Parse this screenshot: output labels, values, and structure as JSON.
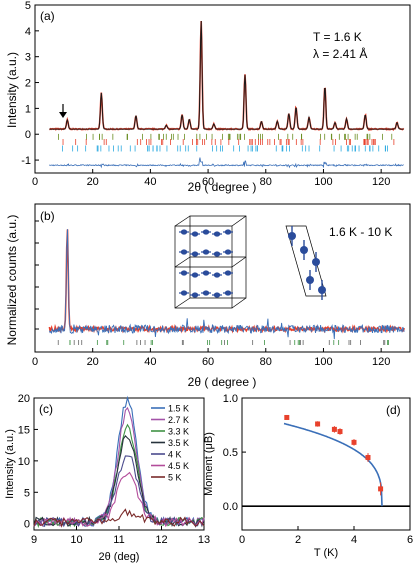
{
  "chart_data": [
    {
      "panel": "(a)",
      "type": "line",
      "xlabel": "2θ ( degree )",
      "ylabel": "Intensity (a.u.)",
      "xlim": [
        0,
        130
      ],
      "ylim": [
        -1.5,
        5
      ],
      "xticks": [
        0,
        20,
        40,
        60,
        80,
        100,
        120
      ],
      "yticks": [
        -1,
        0,
        1,
        2,
        3,
        4,
        5
      ],
      "annotations": [
        "T = 1.6 K",
        "λ = 2.41 Å"
      ],
      "baseline": 0.2,
      "peaks": [
        {
          "x": 11.2,
          "y": 0.55
        },
        {
          "x": 23.0,
          "y": 1.6
        },
        {
          "x": 35.0,
          "y": 0.72
        },
        {
          "x": 45.5,
          "y": 0.35
        },
        {
          "x": 51.0,
          "y": 0.75
        },
        {
          "x": 53.5,
          "y": 0.58
        },
        {
          "x": 57.6,
          "y": 4.38
        },
        {
          "x": 62.0,
          "y": 0.4
        },
        {
          "x": 72.8,
          "y": 2.3
        },
        {
          "x": 78.5,
          "y": 0.5
        },
        {
          "x": 84.0,
          "y": 0.5
        },
        {
          "x": 88.0,
          "y": 0.8
        },
        {
          "x": 90.5,
          "y": 1.05
        },
        {
          "x": 95.0,
          "y": 0.65
        },
        {
          "x": 100.5,
          "y": 1.85
        },
        {
          "x": 104.0,
          "y": 0.45
        },
        {
          "x": 108.0,
          "y": 0.6
        },
        {
          "x": 114.5,
          "y": 0.75
        },
        {
          "x": 125.5,
          "y": 0.45
        }
      ],
      "tick_rows": [
        {
          "color": "#6b8e23",
          "y": -0.1
        },
        {
          "color": "#e8412c",
          "y": -0.3
        },
        {
          "color": "#29a9e0",
          "y": -0.55
        }
      ],
      "difference_level": -1.2
    },
    {
      "panel": "(b)",
      "type": "line",
      "xlabel": "2θ ( degree )",
      "ylabel": "Normalized counts (a.u.)",
      "xlim": [
        0,
        130
      ],
      "xticks": [
        0,
        20,
        40,
        60,
        80,
        100,
        120
      ],
      "annotations": [
        "1.6 K - 10 K"
      ],
      "peak_x": 11.2
    },
    {
      "panel": "(c)",
      "type": "line",
      "xlabel": "2θ (deg)",
      "ylabel": "Intensity (a.u.)",
      "xlim": [
        9,
        13
      ],
      "ylim": [
        -1,
        20
      ],
      "xticks": [
        9,
        10,
        11,
        12,
        13
      ],
      "yticks": [
        0,
        5,
        10,
        15,
        20
      ],
      "peak_center": 11.2,
      "series": [
        {
          "name": "1.5 K",
          "color": "#3a6fb8",
          "peak": 19.3
        },
        {
          "name": "2.7 K",
          "color": "#a353a8",
          "peak": 17.6
        },
        {
          "name": "3.3 K",
          "color": "#3f9245",
          "peak": 14.8
        },
        {
          "name": "3.5 K",
          "color": "#27323c",
          "peak": 14.0
        },
        {
          "name": "4 K",
          "color": "#4b4b8e",
          "peak": 11.0
        },
        {
          "name": "4.5 K",
          "color": "#b34c9a",
          "peak": 8.0
        },
        {
          "name": "5 K",
          "color": "#7a2a2a",
          "peak": 1.4
        }
      ]
    },
    {
      "panel": "(d)",
      "type": "scatter",
      "xlabel": "T (K)",
      "ylabel": "Moment (μB)",
      "xlim": [
        0,
        6
      ],
      "ylim": [
        -0.22,
        1.0
      ],
      "xticks": [
        0,
        2,
        4,
        6
      ],
      "yticks": [
        0.0,
        0.5,
        1.0
      ],
      "ytick_labels": [
        "0.0",
        "0.5",
        "1.0"
      ],
      "points": [
        {
          "x": 1.6,
          "y": 0.82,
          "err": 0.02
        },
        {
          "x": 2.7,
          "y": 0.76,
          "err": 0.025
        },
        {
          "x": 3.3,
          "y": 0.71,
          "err": 0.03
        },
        {
          "x": 3.5,
          "y": 0.69,
          "err": 0.03
        },
        {
          "x": 4.0,
          "y": 0.59,
          "err": 0.03
        },
        {
          "x": 4.5,
          "y": 0.45,
          "err": 0.04
        },
        {
          "x": 4.95,
          "y": 0.16,
          "err": 0.06
        }
      ],
      "fit": {
        "Tn": 5.0,
        "M0": 0.85,
        "beta": 0.3
      }
    }
  ]
}
